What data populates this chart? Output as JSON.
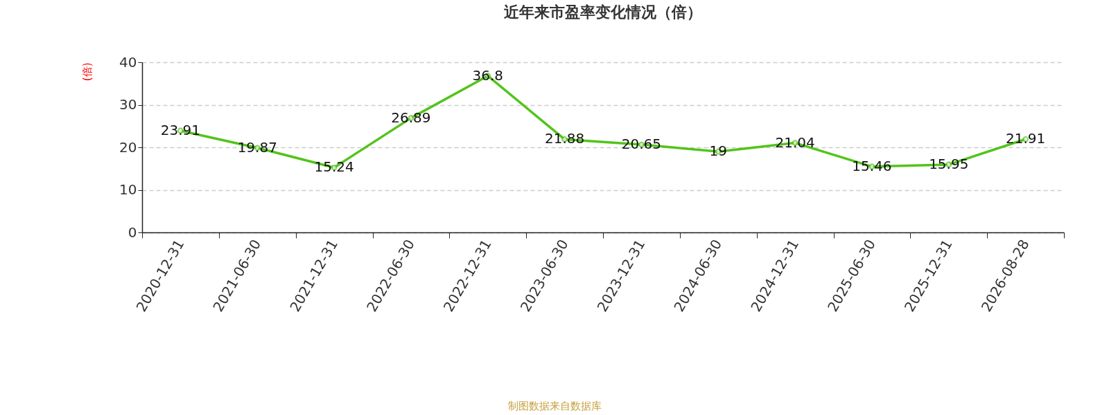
{
  "chart_data": {
    "type": "line",
    "title": "近年来市盈率变化情况（倍）",
    "ylabel": "(倍)",
    "categories": [
      "2020-12-31",
      "2021-06-30",
      "2021-12-31",
      "2022-06-30",
      "2022-12-31",
      "2023-06-30",
      "2023-12-31",
      "2024-06-30",
      "2024-12-31",
      "2025-06-30",
      "2025-12-31",
      "2026-08-28"
    ],
    "series": [
      {
        "color": "#52c41a",
        "values": [
          23.91,
          19.87,
          15.24,
          26.89,
          36.8,
          21.88,
          20.65,
          19,
          21.04,
          15.46,
          15.95,
          21.91
        ]
      }
    ],
    "ylim": [
      0,
      40
    ],
    "yticks": [
      0,
      10,
      20,
      30,
      40
    ],
    "grid": "y",
    "marker": "circle",
    "line_style": "solid",
    "data_labels": true,
    "annotations": [
      "制图数据来自数据库"
    ]
  }
}
